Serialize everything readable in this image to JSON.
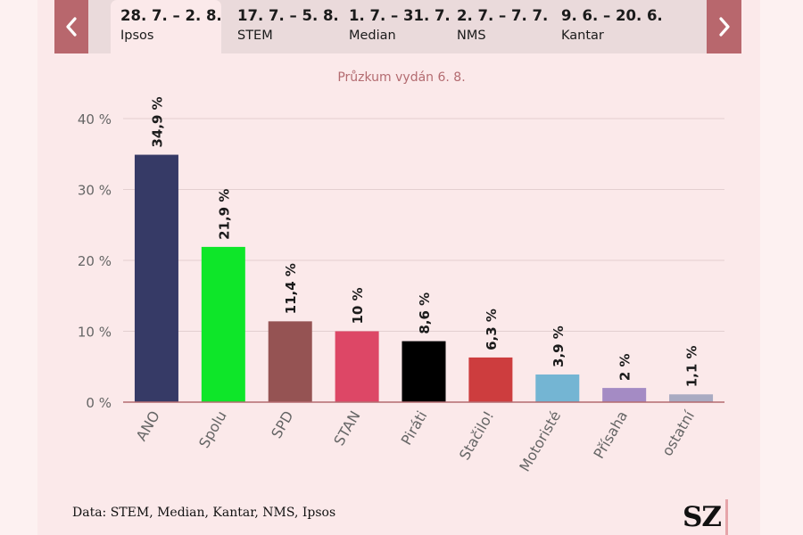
{
  "tabs": [
    {
      "date": "28. 7. – 2. 8.",
      "agency": "Ipsos",
      "active": true
    },
    {
      "date": "17. 7. – 5. 8.",
      "agency": "STEM",
      "active": false
    },
    {
      "date": "1. 7. – 31. 7.",
      "agency": "Median",
      "active": false
    },
    {
      "date": "2. 7. – 7. 7.",
      "agency": "NMS",
      "active": false
    },
    {
      "date": "9. 6. – 20. 6.",
      "agency": "Kantar",
      "active": false
    }
  ],
  "icons": {
    "prev": "chevron-left-icon",
    "next": "chevron-right-icon"
  },
  "subtitle": "Průzkum vydán 6. 8.",
  "source": "Data: STEM, Median, Kantar, NMS, Ipsos",
  "logo": "SZ",
  "colors": {
    "nav_button": "#b8676d",
    "tab_bar": "#eadadb",
    "background": "#fbe9ea",
    "axis_line": "#b36b70"
  },
  "chart_data": {
    "type": "bar",
    "title": "",
    "xlabel": "",
    "ylabel": "",
    "ylim": [
      0,
      40
    ],
    "yticks": [
      0,
      10,
      20,
      30,
      40
    ],
    "ytick_labels": [
      "0 %",
      "10 %",
      "20 %",
      "30 %",
      "40 %"
    ],
    "grid": true,
    "categories": [
      "ANO",
      "Spolu",
      "SPD",
      "STAN",
      "Piráti",
      "Stačilo!",
      "Motoristé",
      "Přísaha",
      "ostatní"
    ],
    "values": [
      34.9,
      21.9,
      11.4,
      10,
      8.6,
      6.3,
      3.9,
      2,
      1.1
    ],
    "value_labels": [
      "34,9 %",
      "21,9 %",
      "11,4 %",
      "10 %",
      "8,6 %",
      "6,3 %",
      "3,9 %",
      "2 %",
      "1,1 %"
    ],
    "colors": [
      "#363a66",
      "#0ee629",
      "#955353",
      "#dd4766",
      "#000000",
      "#cd3d3e",
      "#74b5d3",
      "#a48bc4",
      "#a9abc2"
    ]
  }
}
